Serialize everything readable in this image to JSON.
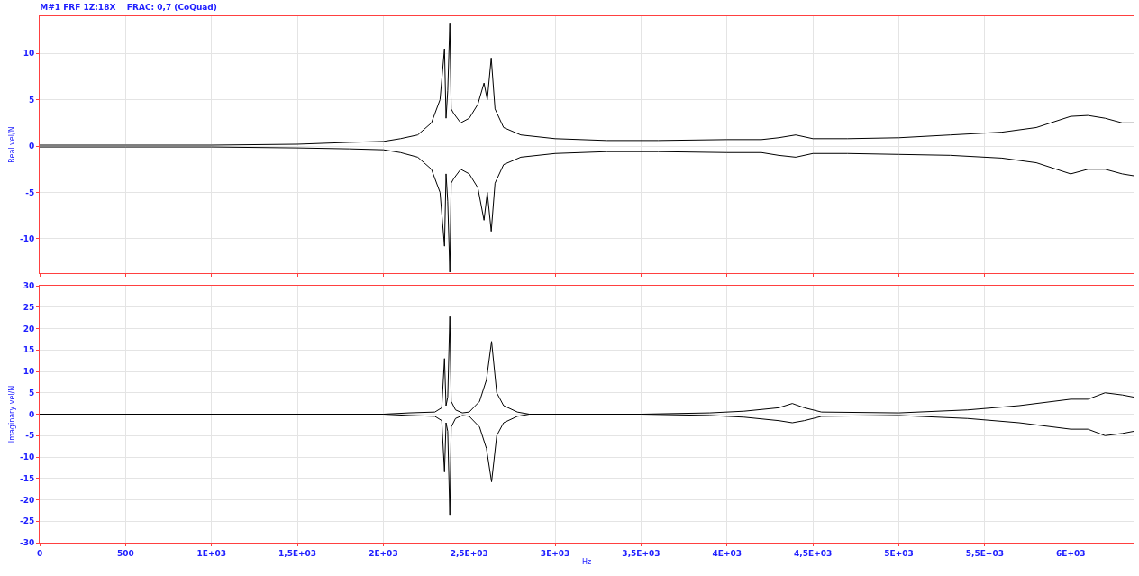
{
  "chart_data": [
    {
      "type": "line",
      "title": "M#1 FRF 1Z:18X    FRAC: 0,7 (CoQuad)",
      "ylabel": "Real vel/N",
      "xlim": [
        0,
        6366
      ],
      "ylim": [
        -13.7,
        14
      ],
      "xticks": [
        {
          "value": 0,
          "label": null
        },
        {
          "value": 500,
          "label": null
        },
        {
          "value": 1000,
          "label": null
        },
        {
          "value": 1500,
          "label": null
        },
        {
          "value": 2000,
          "label": null
        },
        {
          "value": 2500,
          "label": null
        },
        {
          "value": 3000,
          "label": null
        },
        {
          "value": 3500,
          "label": null
        },
        {
          "value": 4000,
          "label": null
        },
        {
          "value": 4500,
          "label": null
        },
        {
          "value": 5000,
          "label": null
        },
        {
          "value": 5500,
          "label": null
        },
        {
          "value": 6000,
          "label": null
        }
      ],
      "yticks": [
        -10,
        -5,
        0,
        5,
        10
      ],
      "tick_labels": "y",
      "grid": true,
      "x": [
        0,
        500,
        1000,
        1500,
        1800,
        2000,
        2100,
        2200,
        2280,
        2330,
        2356,
        2365,
        2375,
        2387,
        2395,
        2410,
        2450,
        2500,
        2550,
        2586,
        2605,
        2628,
        2650,
        2700,
        2800,
        3000,
        3300,
        3600,
        4000,
        4200,
        4300,
        4400,
        4500,
        4700,
        5000,
        5300,
        5600,
        5800,
        6000,
        6100,
        6200,
        6300,
        6366
      ],
      "series": [
        {
          "color": "#000000",
          "values": [
            0.1,
            0.1,
            0.1,
            0.2,
            0.4,
            0.5,
            0.8,
            1.2,
            2.5,
            5,
            10.5,
            3,
            6,
            13.2,
            4,
            3.5,
            2.5,
            3,
            4.5,
            6.8,
            5,
            9.5,
            4,
            2,
            1.2,
            0.8,
            0.6,
            0.6,
            0.7,
            0.7,
            0.9,
            1.2,
            0.8,
            0.8,
            0.9,
            1.2,
            1.5,
            2,
            3.2,
            3.3,
            3,
            2.5,
            2.5
          ]
        },
        {
          "color": "#000000",
          "values": [
            -0.1,
            -0.1,
            -0.1,
            -0.2,
            -0.3,
            -0.4,
            -0.7,
            -1.2,
            -2.5,
            -5,
            -10.8,
            -3,
            -6,
            -13.6,
            -4,
            -3.5,
            -2.5,
            -3,
            -4.5,
            -8,
            -5,
            -9.2,
            -4,
            -2,
            -1.2,
            -0.8,
            -0.6,
            -0.6,
            -0.7,
            -0.7,
            -1,
            -1.2,
            -0.8,
            -0.8,
            -0.9,
            -1,
            -1.3,
            -1.8,
            -3,
            -2.5,
            -2.5,
            -3,
            -3.2
          ]
        }
      ]
    },
    {
      "type": "line",
      "ylabel": "Imaginary vel/N",
      "xlabel": "Hz",
      "xlim": [
        0,
        6366
      ],
      "ylim": [
        -30,
        30
      ],
      "xticks": [
        0,
        500,
        {
          "value": 1000,
          "label": "1E+03"
        },
        {
          "value": 1500,
          "label": "1,5E+03"
        },
        {
          "value": 2000,
          "label": "2E+03"
        },
        {
          "value": 2500,
          "label": "2,5E+03"
        },
        {
          "value": 3000,
          "label": "3E+03"
        },
        {
          "value": 3500,
          "label": "3,5E+03"
        },
        {
          "value": 4000,
          "label": "4E+03"
        },
        {
          "value": 4500,
          "label": "4,5E+03"
        },
        {
          "value": 5000,
          "label": "5E+03"
        },
        {
          "value": 5500,
          "label": "5,5E+03"
        },
        {
          "value": 6000,
          "label": "6E+03"
        }
      ],
      "yticks": [
        -30,
        -25,
        -20,
        -15,
        -10,
        -5,
        0,
        5,
        10,
        15,
        20,
        25,
        30
      ],
      "grid": true,
      "x": [
        0,
        2000,
        2150,
        2300,
        2340,
        2356,
        2365,
        2375,
        2387,
        2395,
        2420,
        2460,
        2500,
        2560,
        2600,
        2630,
        2660,
        2700,
        2780,
        2850,
        3500,
        3900,
        4100,
        4300,
        4380,
        4450,
        4550,
        5000,
        5400,
        5700,
        6000,
        6100,
        6200,
        6300,
        6366
      ],
      "series": [
        {
          "color": "#000000",
          "values": [
            0,
            0,
            0.3,
            0.5,
            1.5,
            13,
            2,
            4,
            22.8,
            3,
            1,
            0.3,
            0.5,
            3,
            8,
            17,
            5,
            2,
            0.5,
            0,
            0,
            0.3,
            0.7,
            1.5,
            2.5,
            1.5,
            0.5,
            0.3,
            1,
            2,
            3.5,
            3.5,
            5,
            4.5,
            4
          ]
        },
        {
          "color": "#000000",
          "values": [
            0,
            0,
            -0.3,
            -0.5,
            -1.5,
            -13.5,
            -2,
            -4,
            -23.5,
            -3,
            -1,
            -0.3,
            -0.5,
            -3,
            -8,
            -15.8,
            -5,
            -2,
            -0.5,
            0,
            0,
            -0.3,
            -0.7,
            -1.5,
            -2,
            -1.5,
            -0.5,
            -0.3,
            -1,
            -2,
            -3.5,
            -3.5,
            -5,
            -4.5,
            -4
          ]
        }
      ]
    }
  ]
}
